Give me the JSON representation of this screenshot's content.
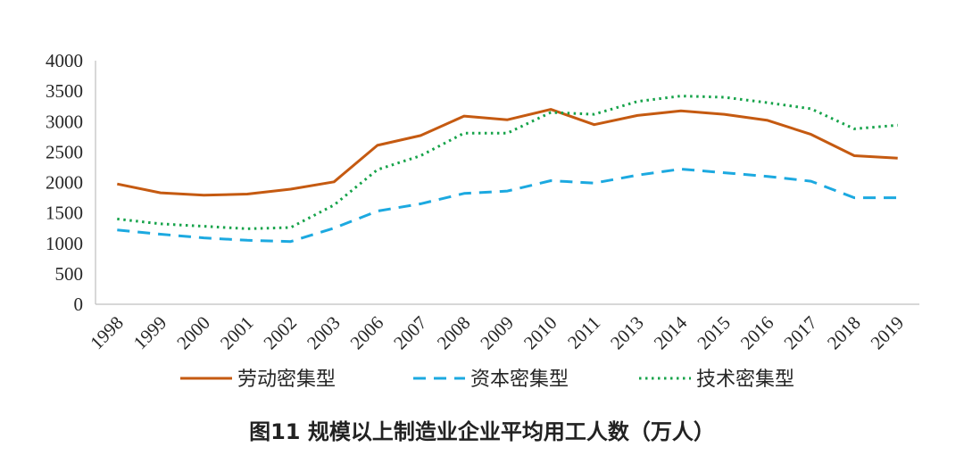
{
  "caption": "图11  规模以上制造业企业平均用工人数（万人）",
  "colors": {
    "labor": "#C55A11",
    "capital": "#1CA9E0",
    "tech": "#16A34A",
    "axis": "#BFBFBF",
    "text": "#262626"
  },
  "chart_data": {
    "type": "line",
    "title": "",
    "xlabel": "",
    "ylabel": "",
    "ylim": [
      0,
      4000
    ],
    "yticks": [
      0,
      500,
      1000,
      1500,
      2000,
      2500,
      3000,
      3500,
      4000
    ],
    "grid": false,
    "legend_position": "bottom",
    "categories": [
      "1998",
      "1999",
      "2000",
      "2001",
      "2002",
      "2003",
      "2006",
      "2007",
      "2008",
      "2009",
      "2010",
      "2011",
      "2013",
      "2014",
      "2015",
      "2016",
      "2017",
      "2018",
      "2019"
    ],
    "series": [
      {
        "name": "劳动密集型",
        "style": "solid",
        "color": "#C55A11",
        "values": [
          1975,
          1830,
          1790,
          1810,
          1890,
          2010,
          2610,
          2770,
          3090,
          3030,
          3200,
          2950,
          3100,
          3175,
          3120,
          3020,
          2790,
          2440,
          2400
        ]
      },
      {
        "name": "资本密集型",
        "style": "dashed",
        "color": "#1CA9E0",
        "values": [
          1220,
          1150,
          1090,
          1050,
          1030,
          1250,
          1530,
          1650,
          1820,
          1860,
          2030,
          1990,
          2120,
          2220,
          2160,
          2100,
          2020,
          1750,
          1750
        ]
      },
      {
        "name": "技术密集型",
        "style": "dotted",
        "color": "#16A34A",
        "values": [
          1400,
          1320,
          1280,
          1240,
          1260,
          1630,
          2210,
          2440,
          2810,
          2810,
          3150,
          3120,
          3330,
          3420,
          3400,
          3310,
          3210,
          2880,
          2940
        ]
      }
    ]
  }
}
